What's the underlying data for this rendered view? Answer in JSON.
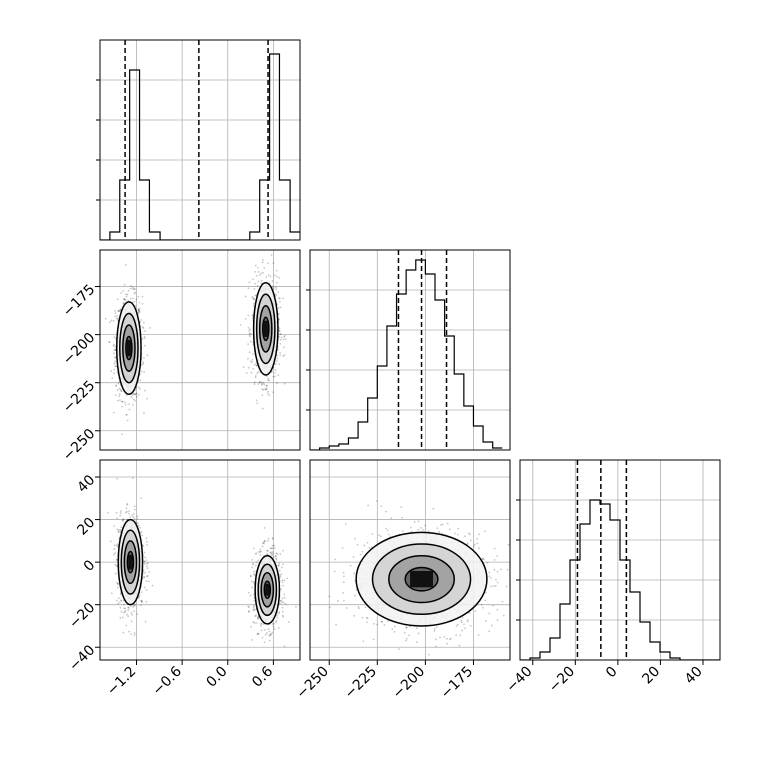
{
  "chart_data": {
    "type": "corner",
    "n_params": 3,
    "params": [
      {
        "range": [
          -1.68,
          0.95
        ],
        "ticks": [
          -1.2,
          -0.6,
          0.0,
          0.6
        ],
        "tick_labels": [
          "−1.2",
          "−0.6",
          "0.0",
          "0.6"
        ]
      },
      {
        "range": [
          -260,
          -156
        ],
        "ticks": [
          -250,
          -225,
          -200,
          -175
        ],
        "tick_labels": [
          "−250",
          "−225",
          "−200",
          "−175"
        ]
      },
      {
        "range": [
          -46,
          48
        ],
        "ticks": [
          -40,
          -20,
          0,
          20,
          40
        ],
        "tick_labels": [
          "−40",
          "−20",
          "0",
          "20",
          "40"
        ]
      }
    ],
    "diag_hist_ylim": [
      0,
      0.1
    ],
    "histograms": [
      {
        "edges": [
          -1.68,
          -1.55,
          -1.42,
          -1.29,
          -1.16,
          -1.03,
          -0.89,
          -0.76,
          -0.63,
          -0.5,
          -0.37,
          -0.24,
          -0.11,
          0.03,
          0.16,
          0.29,
          0.42,
          0.55,
          0.68,
          0.82,
          0.95
        ],
        "values": [
          0.0,
          0.004,
          0.03,
          0.085,
          0.03,
          0.004,
          0.0,
          0.0,
          0.0,
          0.0,
          0.0,
          0.0,
          0.0,
          0.0,
          0.0,
          0.004,
          0.03,
          0.093,
          0.03,
          0.004
        ],
        "quantiles": [
          -1.35,
          -0.38,
          0.53
        ]
      },
      {
        "edges": [
          -260,
          -255,
          -250,
          -245,
          -240,
          -235,
          -230,
          -225,
          -220,
          -215,
          -210,
          -205,
          -200,
          -195,
          -190,
          -185,
          -180,
          -175,
          -170,
          -165,
          -160
        ],
        "values": [
          0.0,
          0.001,
          0.002,
          0.003,
          0.006,
          0.014,
          0.026,
          0.042,
          0.062,
          0.078,
          0.09,
          0.095,
          0.088,
          0.075,
          0.057,
          0.038,
          0.022,
          0.012,
          0.004,
          0.001
        ],
        "quantiles": [
          -214,
          -202,
          -189
        ]
      },
      {
        "edges": [
          -46,
          -41.3,
          -36.6,
          -31.9,
          -27.2,
          -22.5,
          -17.8,
          -13.1,
          -8.4,
          -3.7,
          1.0,
          5.7,
          10.4,
          15.1,
          19.8,
          24.5,
          29.2,
          33.9,
          38.6,
          43.3,
          48
        ],
        "values": [
          0.0,
          0.001,
          0.004,
          0.011,
          0.028,
          0.05,
          0.068,
          0.08,
          0.078,
          0.07,
          0.05,
          0.034,
          0.019,
          0.009,
          0.004,
          0.001,
          0.0,
          0.0,
          0.0,
          0.0
        ],
        "quantiles": [
          -19,
          -8,
          4
        ]
      }
    ],
    "pairs": [
      {
        "x_param": 0,
        "y_param": 1,
        "clusters": [
          {
            "mean": [
              -1.3,
              -207
            ],
            "sd": [
              0.08,
              12
            ]
          },
          {
            "mean": [
              0.5,
              -197
            ],
            "sd": [
              0.08,
              12
            ]
          }
        ]
      },
      {
        "x_param": 0,
        "y_param": 2,
        "clusters": [
          {
            "mean": [
              -1.28,
              0
            ],
            "sd": [
              0.08,
              10
            ]
          },
          {
            "mean": [
              0.52,
              -13
            ],
            "sd": [
              0.08,
              8
            ]
          }
        ]
      },
      {
        "x_param": 1,
        "y_param": 2,
        "clusters": [
          {
            "mean": [
              -202,
              -8
            ],
            "sd": [
              17,
              11
            ]
          }
        ]
      }
    ]
  }
}
